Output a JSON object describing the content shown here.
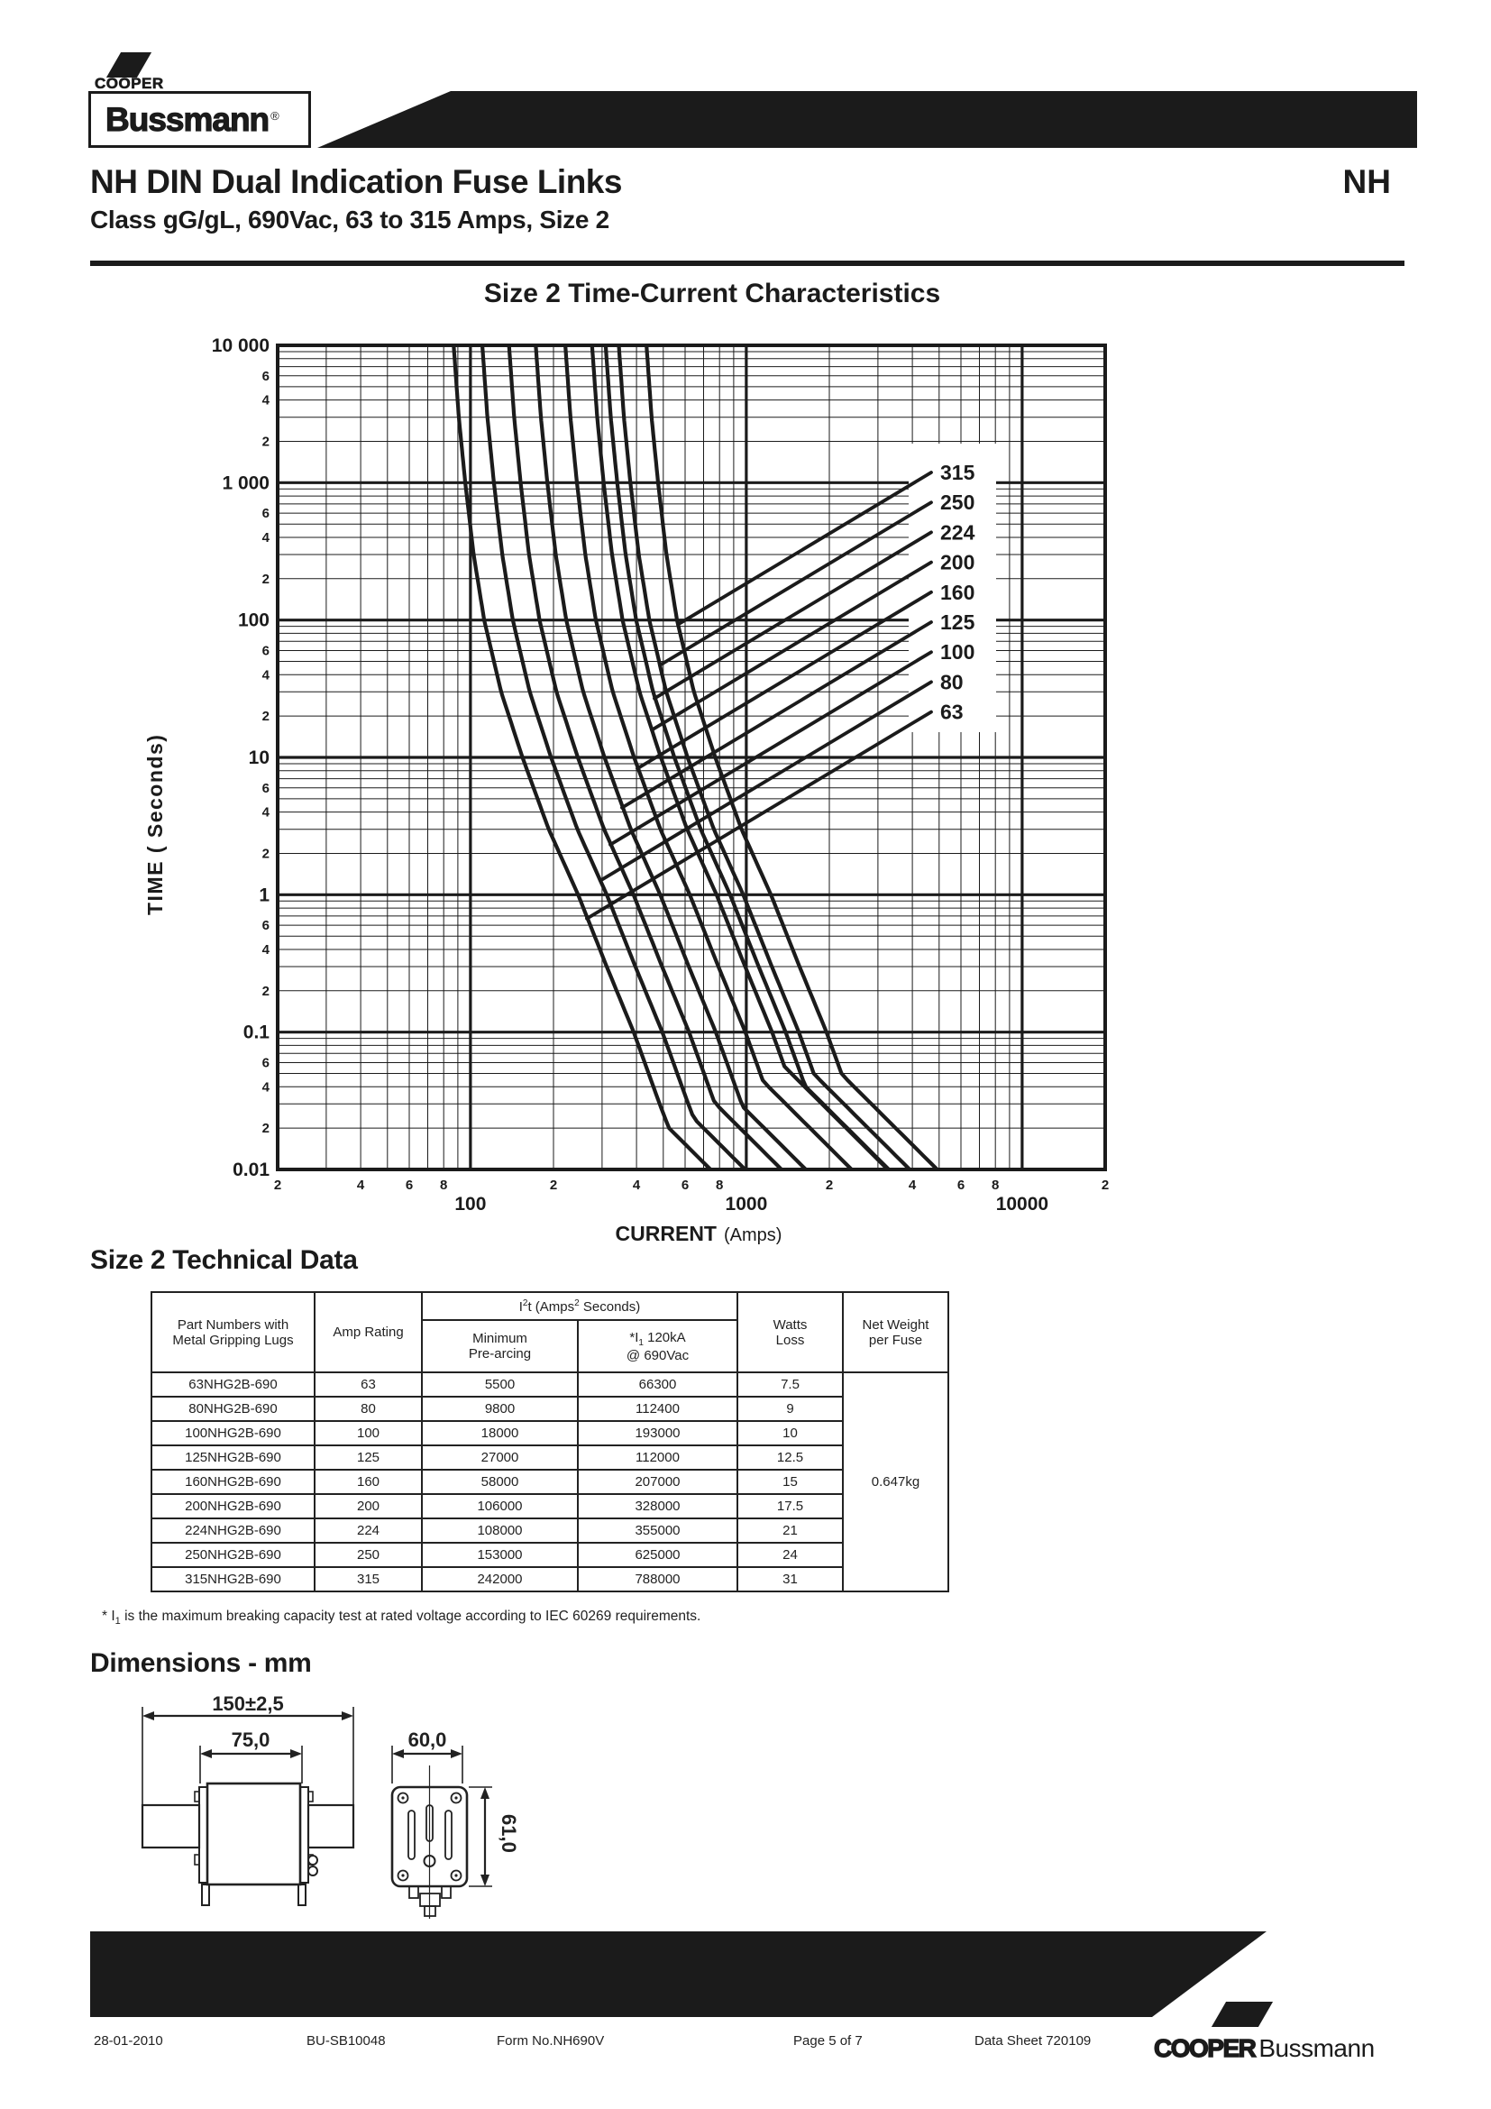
{
  "header": {
    "brand_top": "COOPER",
    "brand_box": "Bussmann",
    "brand_reg": "®",
    "title": "NH DIN Dual Indication Fuse Links",
    "title_code": "NH",
    "subtitle": "Class gG/gL, 690Vac, 63 to 315 Amps, Size 2"
  },
  "chart_data": {
    "type": "line",
    "title": "Size 2 Time-Current Characteristics",
    "xlabel": "CURRENT",
    "xlabel_units": "(Amps)",
    "ylabel": "TIME  ( Seconds)",
    "xlim": [
      20,
      20000
    ],
    "ylim": [
      0.01,
      10000
    ],
    "grid": "log-log with minor gridlines 2-9 each decade",
    "legend_position": "labels with leader lines inside plot, right side",
    "x_ticks": [
      [
        20,
        "2",
        0
      ],
      [
        40,
        "4",
        0
      ],
      [
        60,
        "6",
        0
      ],
      [
        80,
        "8",
        0
      ],
      [
        100,
        "100",
        1
      ],
      [
        200,
        "2",
        0
      ],
      [
        400,
        "4",
        0
      ],
      [
        600,
        "6",
        0
      ],
      [
        800,
        "8",
        0
      ],
      [
        1000,
        "1000",
        1
      ],
      [
        2000,
        "2",
        0
      ],
      [
        4000,
        "4",
        0
      ],
      [
        6000,
        "6",
        0
      ],
      [
        8000,
        "8",
        0
      ],
      [
        10000,
        "10000",
        1
      ],
      [
        20000,
        "2",
        0
      ]
    ],
    "y_ticks": [
      [
        10000,
        "10 000",
        1
      ],
      [
        6000,
        "6",
        0
      ],
      [
        4000,
        "4",
        0
      ],
      [
        2000,
        "2",
        0
      ],
      [
        1000,
        "1 000",
        1
      ],
      [
        600,
        "6",
        0
      ],
      [
        400,
        "4",
        0
      ],
      [
        200,
        "2",
        0
      ],
      [
        100,
        "100",
        1
      ],
      [
        60,
        "6",
        0
      ],
      [
        40,
        "4",
        0
      ],
      [
        20,
        "2",
        0
      ],
      [
        10,
        "10",
        1
      ],
      [
        6,
        "6",
        0
      ],
      [
        4,
        "4",
        0
      ],
      [
        2,
        "2",
        0
      ],
      [
        1,
        "1",
        1
      ],
      [
        0.6,
        "6",
        0
      ],
      [
        0.4,
        "4",
        0
      ],
      [
        0.2,
        "2",
        0
      ],
      [
        0.1,
        "0.1",
        1
      ],
      [
        0.06,
        "6",
        0
      ],
      [
        0.04,
        "4",
        0
      ],
      [
        0.02,
        "2",
        0
      ],
      [
        0.01,
        "0.01",
        1
      ]
    ],
    "series": [
      {
        "name": "315",
        "amp_rating": 315,
        "min_prearc_i2t": 242000
      },
      {
        "name": "250",
        "amp_rating": 250,
        "min_prearc_i2t": 153000
      },
      {
        "name": "224",
        "amp_rating": 224,
        "min_prearc_i2t": 108000
      },
      {
        "name": "200",
        "amp_rating": 200,
        "min_prearc_i2t": 106000
      },
      {
        "name": "160",
        "amp_rating": 160,
        "min_prearc_i2t": 58000
      },
      {
        "name": "125",
        "amp_rating": 125,
        "min_prearc_i2t": 27000
      },
      {
        "name": "100",
        "amp_rating": 100,
        "min_prearc_i2t": 18000
      },
      {
        "name": "80",
        "amp_rating": 80,
        "min_prearc_i2t": 9800
      },
      {
        "name": "63",
        "amp_rating": 63,
        "min_prearc_i2t": 5500
      }
    ],
    "melting_profile": {
      "t": [
        10000,
        3000,
        1000,
        300,
        100,
        30,
        10,
        3,
        1,
        0.3,
        0.1,
        0.03,
        0.01
      ],
      "current_over_rating": [
        1.38,
        1.44,
        1.52,
        1.63,
        1.78,
        2.05,
        2.45,
        3.05,
        3.9,
        4.95,
        6.2,
        7.7,
        9.5
      ]
    }
  },
  "table": {
    "section_title": "Size 2 Technical Data",
    "col_part": [
      "Part Numbers with",
      "Metal Gripping Lugs"
    ],
    "col_amp": "Amp Rating",
    "i2t_group": [
      "I",
      "2",
      "t (Amps",
      "2",
      " Seconds)"
    ],
    "col_min": [
      "Minimum",
      "Pre-arcing"
    ],
    "col_i1": [
      "*I",
      "1",
      " 120kA",
      "@ 690Vac"
    ],
    "col_watts": [
      "Watts",
      "Loss"
    ],
    "col_weight": [
      "Net Weight",
      "per Fuse"
    ],
    "rows": [
      {
        "part": "63NHG2B-690",
        "amp": "63",
        "min_i2t": "5500",
        "i1": "66300",
        "watts": "7.5"
      },
      {
        "part": "80NHG2B-690",
        "amp": "80",
        "min_i2t": "9800",
        "i1": "112400",
        "watts": "9"
      },
      {
        "part": "100NHG2B-690",
        "amp": "100",
        "min_i2t": "18000",
        "i1": "193000",
        "watts": "10"
      },
      {
        "part": "125NHG2B-690",
        "amp": "125",
        "min_i2t": "27000",
        "i1": "112000",
        "watts": "12.5"
      },
      {
        "part": "160NHG2B-690",
        "amp": "160",
        "min_i2t": "58000",
        "i1": "207000",
        "watts": "15"
      },
      {
        "part": "200NHG2B-690",
        "amp": "200",
        "min_i2t": "106000",
        "i1": "328000",
        "watts": "17.5"
      },
      {
        "part": "224NHG2B-690",
        "amp": "224",
        "min_i2t": "108000",
        "i1": "355000",
        "watts": "21"
      },
      {
        "part": "250NHG2B-690",
        "amp": "250",
        "min_i2t": "153000",
        "i1": "625000",
        "watts": "24"
      },
      {
        "part": "315NHG2B-690",
        "amp": "315",
        "min_i2t": "242000",
        "i1": "788000",
        "watts": "31"
      }
    ],
    "net_weight": "0.647kg",
    "footnote": [
      "* I",
      "1",
      " is the maximum breaking capacity test at rated voltage according to IEC 60269 requirements."
    ]
  },
  "dimensions": {
    "section_title": "Dimensions - mm",
    "front_overall_width": "150±2,5",
    "front_body_width": "75,0",
    "end_width": "60,0",
    "end_height": "61,0"
  },
  "footer": {
    "date": "28-01-2010",
    "doc_number": "BU-SB10048",
    "form_number": "Form No.NH690V",
    "page": "Page 5 of 7",
    "data_sheet": "Data Sheet 720109",
    "brand_bold": "COOPER",
    "brand_light": "Bussmann"
  }
}
